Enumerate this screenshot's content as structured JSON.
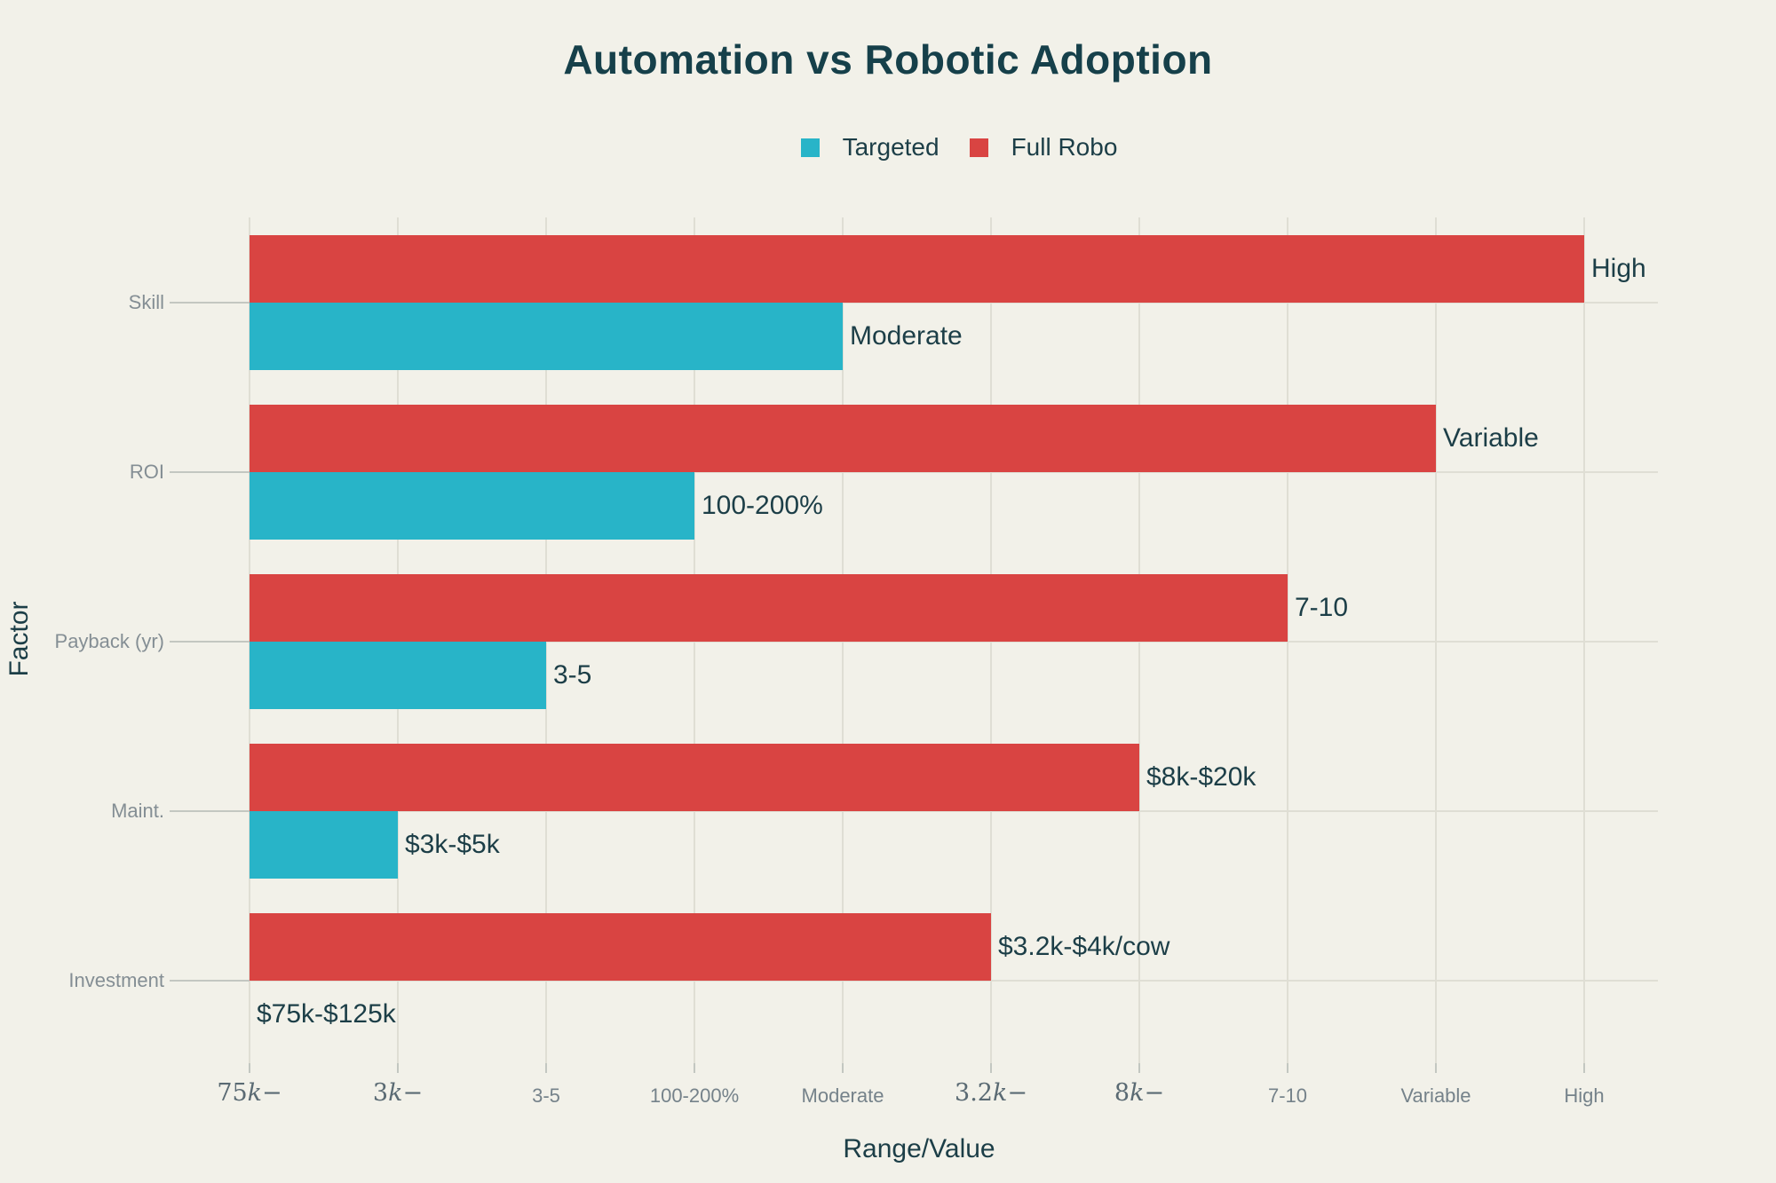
{
  "figure": {
    "background": "#f2f1e9"
  },
  "legend": {
    "items": [
      {
        "label": "Targeted",
        "color": "#28b4c8"
      },
      {
        "label": "Full Robo",
        "color": "#d94442"
      }
    ]
  },
  "chart_data": {
    "type": "bar",
    "orientation": "horizontal",
    "title": "Automation vs Robotic Adoption",
    "xlabel": "Range/Value",
    "ylabel": "Factor",
    "categories": [
      "Skill",
      "ROI",
      "Payback (yr)",
      "Maint.",
      "Investment"
    ],
    "series": [
      {
        "name": "Targeted",
        "color": "#28b4c8",
        "values": [
          4,
          3,
          2,
          1,
          0
        ],
        "bar_labels": [
          "Moderate",
          "100-200%",
          "3-5",
          "$3k-$5k",
          "$75k-$125k"
        ]
      },
      {
        "name": "Full Robo",
        "color": "#d94442",
        "values": [
          9,
          8,
          7,
          6,
          5
        ],
        "bar_labels": [
          "High",
          "Variable",
          "7-10",
          "$8k-$20k",
          "$3.2k-$4k/cow"
        ]
      }
    ],
    "x_tick_labels": [
      "75k−",
      "3k−",
      "3-5",
      "100-200%",
      "Moderate",
      "3.2k−",
      "8k−",
      "7-10",
      "Variable",
      "High"
    ],
    "x_tick_math": [
      true,
      true,
      false,
      false,
      false,
      true,
      true,
      false,
      false,
      false
    ],
    "xlim": [
      0,
      9.5
    ],
    "grid": true,
    "legend_position": "top-center",
    "colors": {
      "title_text": "#16404a",
      "dark_text": "#1c3e47",
      "sans_tick_text": "#75828a",
      "math_tick_text": "#5a6a73",
      "category_text": "#848e94",
      "grid": "#dfded4",
      "tick_mark": "#c3c7c1",
      "background": "#f2f1e9"
    }
  }
}
